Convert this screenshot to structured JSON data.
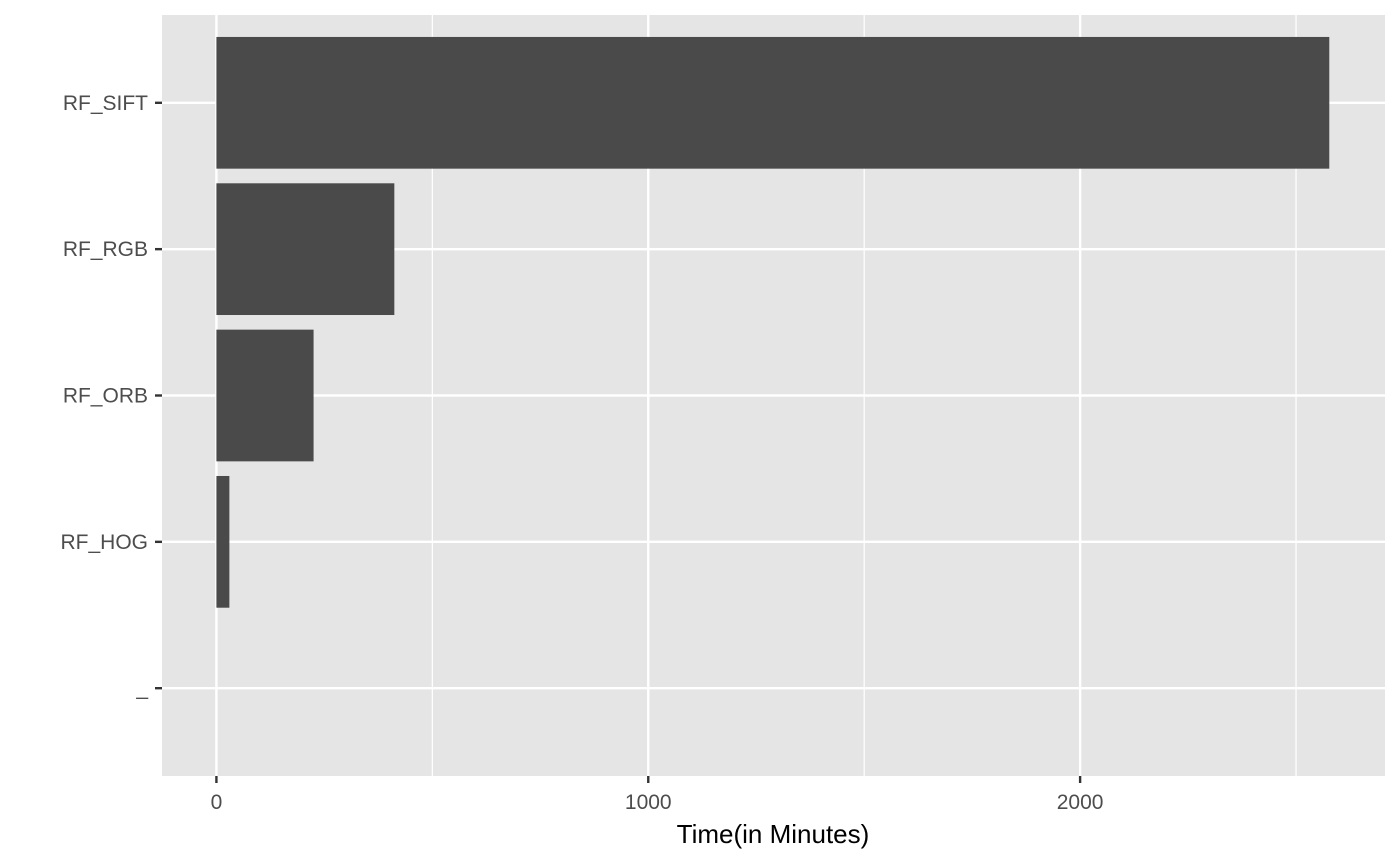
{
  "chart_data": {
    "type": "bar",
    "orientation": "horizontal",
    "categories": [
      "_",
      "RF_HOG",
      "RF_ORB",
      "RF_RGB",
      "RF_SIFT"
    ],
    "values": [
      0,
      30,
      225,
      412,
      2577
    ],
    "xlabel": "Time(in Minutes)",
    "ylabel": "",
    "xlim": [
      -126,
      2706
    ],
    "xticks": [
      0,
      1000,
      2000
    ],
    "xtick_labels": [
      "0",
      "1000",
      "2000"
    ],
    "grid": true,
    "legend": "none",
    "colors": {
      "panel": "#e5e5e5",
      "bar": "#4a4a4a",
      "grid": "#ffffff",
      "tick": "#333333"
    }
  }
}
